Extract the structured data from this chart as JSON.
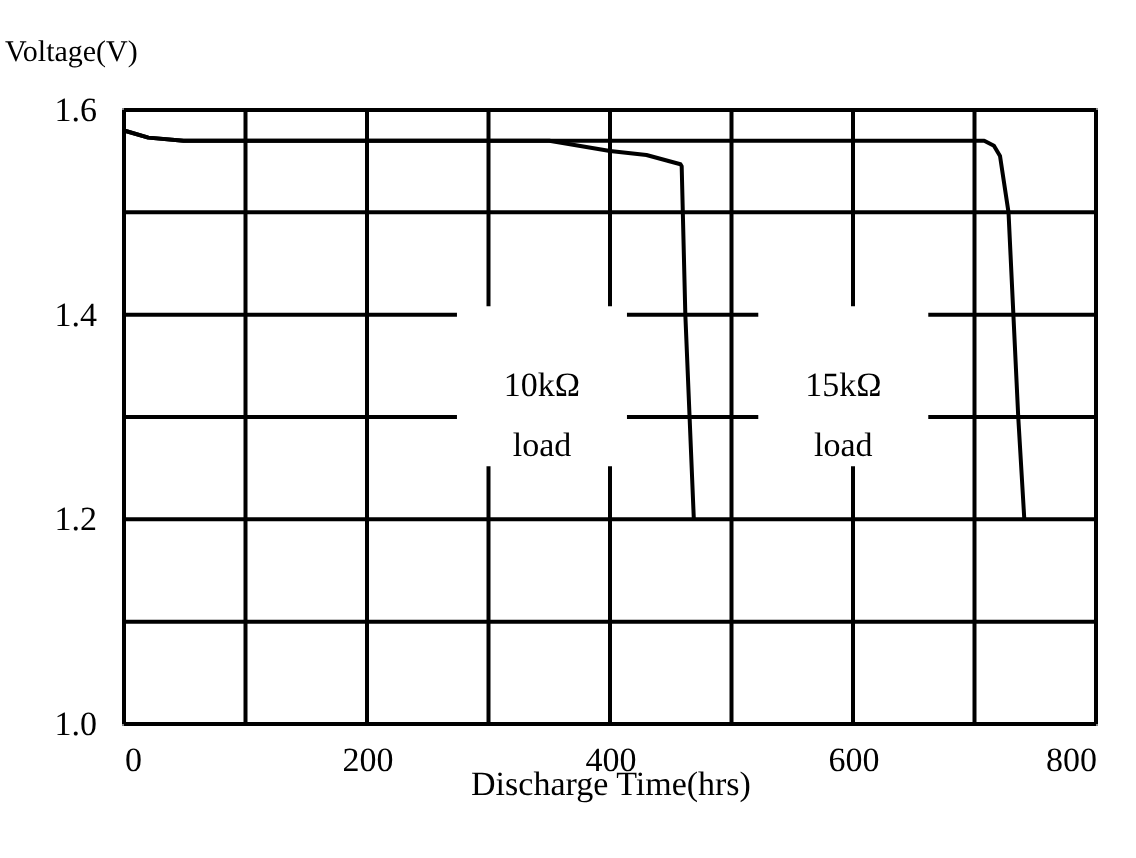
{
  "chart_data": {
    "type": "line",
    "xlabel": "Discharge Time(hrs)",
    "ylabel": "Voltage(V)",
    "xlim": [
      0,
      800
    ],
    "ylim": [
      1.0,
      1.6
    ],
    "xticks": [
      0,
      200,
      400,
      600,
      800
    ],
    "yticks": [
      {
        "value": 1.0,
        "label": "1.0"
      },
      {
        "value": 1.2,
        "label": "1.2"
      },
      {
        "value": 1.4,
        "label": "1.4"
      },
      {
        "value": 1.6,
        "label": "1.6"
      }
    ],
    "grid": true,
    "marker": "none",
    "line_style": "solid",
    "series": [
      {
        "color": "#000000",
        "x": [
          0,
          20,
          49,
          200,
          350,
          400,
          430,
          458,
          459,
          462,
          469
        ],
        "values": [
          1.58,
          1.573,
          1.57,
          1.57,
          1.57,
          1.56,
          1.556,
          1.547,
          1.545,
          1.4,
          1.2
        ]
      },
      {
        "color": "#000000",
        "x": [
          0,
          20,
          49,
          300,
          500,
          708,
          716,
          721,
          728,
          732,
          736,
          741
        ],
        "values": [
          1.58,
          1.573,
          1.57,
          1.57,
          1.57,
          1.57,
          1.565,
          1.555,
          1.5,
          1.4,
          1.3,
          1.2
        ]
      }
    ],
    "annotations": [
      "10kΩ\nload",
      "15kΩ\nload"
    ]
  }
}
